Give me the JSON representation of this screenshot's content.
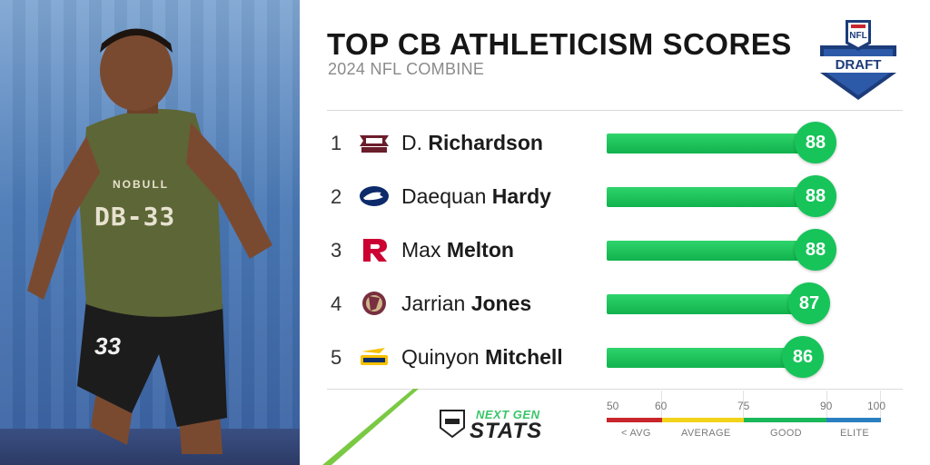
{
  "header": {
    "title": "TOP CB ATHLETICISM SCORES",
    "subtitle": "2024 NFL COMBINE",
    "logo_top": "NFL",
    "logo_bottom": "DRAFT"
  },
  "athlete_jersey": "DB-33",
  "athlete_shorts_number": "33",
  "athlete_brand": "NOBULL",
  "players": [
    {
      "rank": "1",
      "first": "D.",
      "last": "Richardson",
      "team_icon": "mississippi-state-logo",
      "score": "88"
    },
    {
      "rank": "2",
      "first": "Daequan",
      "last": "Hardy",
      "team_icon": "penn-state-logo",
      "score": "88"
    },
    {
      "rank": "3",
      "first": "Max",
      "last": "Melton",
      "team_icon": "rutgers-logo",
      "score": "88"
    },
    {
      "rank": "4",
      "first": "Jarrian",
      "last": "Jones",
      "team_icon": "florida-state-logo",
      "score": "87"
    },
    {
      "rank": "5",
      "first": "Quinyon",
      "last": "Mitchell",
      "team_icon": "toledo-logo",
      "score": "86"
    }
  ],
  "brand": {
    "next": "NEXT GEN",
    "stats": "STATS"
  },
  "scale": {
    "ticks": [
      "50",
      "60",
      "75",
      "90",
      "100"
    ],
    "categories": [
      "< AVG",
      "AVERAGE",
      "GOOD",
      "ELITE"
    ],
    "colors": {
      "below_avg": "#c8262c",
      "average": "#f2d31b",
      "good": "#19b859",
      "elite": "#2a7fc1",
      "bar": "#17c45a"
    }
  }
}
